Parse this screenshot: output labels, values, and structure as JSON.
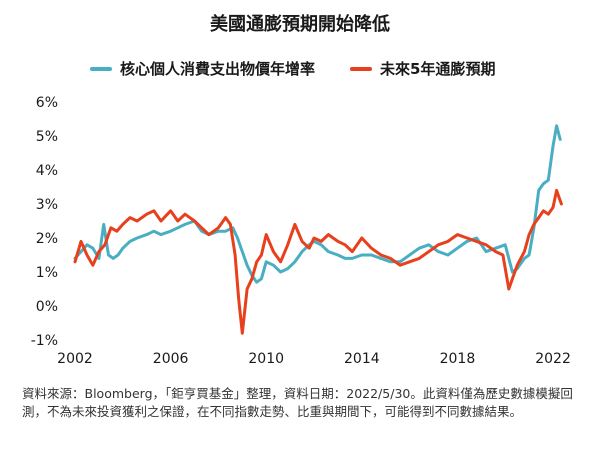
{
  "title": "美國通膨預期開始降低",
  "source_note": "資料來源：Bloomberg，「鉅亨買基金」整理，資料日期：2022/5/30。此資料僅為歷史數據模擬回測，不為未來投資獲利之保證，在不同指數走勢、比重與期間下，可能得到不同數據結果。",
  "chart_data": {
    "type": "line",
    "title": "美國通膨預期開始降低",
    "xlabel": "",
    "ylabel": "",
    "xlim": [
      2002,
      2022.5
    ],
    "ylim": [
      -1,
      6
    ],
    "x_ticks": [
      2002,
      2006,
      2010,
      2014,
      2018,
      2022
    ],
    "x_tick_labels": [
      "2002",
      "2006",
      "2010",
      "2014",
      "2018",
      "2022"
    ],
    "y_ticks": [
      -1,
      0,
      1,
      2,
      3,
      4,
      5,
      6
    ],
    "y_tick_labels": [
      "-1%",
      "0%",
      "1%",
      "2%",
      "3%",
      "4%",
      "5%",
      "6%"
    ],
    "grid": false,
    "legend_position": "top",
    "series": [
      {
        "name": "核心個人消費支出物價年增率",
        "color": "#4aaec3",
        "x": [
          2002.0,
          2002.25,
          2002.5,
          2002.75,
          2003.0,
          2003.2,
          2003.4,
          2003.6,
          2003.8,
          2004.0,
          2004.3,
          2004.6,
          2005.0,
          2005.3,
          2005.6,
          2006.0,
          2006.3,
          2006.6,
          2007.0,
          2007.3,
          2007.6,
          2008.0,
          2008.3,
          2008.6,
          2008.8,
          2009.0,
          2009.2,
          2009.4,
          2009.6,
          2009.8,
          2010.0,
          2010.3,
          2010.6,
          2010.9,
          2011.2,
          2011.5,
          2011.8,
          2012.0,
          2012.3,
          2012.6,
          2013.0,
          2013.3,
          2013.6,
          2014.0,
          2014.4,
          2014.8,
          2015.2,
          2015.6,
          2016.0,
          2016.4,
          2016.8,
          2017.2,
          2017.6,
          2018.0,
          2018.4,
          2018.8,
          2019.2,
          2019.6,
          2020.0,
          2020.3,
          2020.5,
          2020.8,
          2021.0,
          2021.2,
          2021.4,
          2021.6,
          2021.8,
          2022.0,
          2022.15,
          2022.3
        ],
        "values": [
          1.4,
          1.6,
          1.8,
          1.7,
          1.4,
          2.4,
          1.5,
          1.4,
          1.5,
          1.7,
          1.9,
          2.0,
          2.1,
          2.2,
          2.1,
          2.2,
          2.3,
          2.4,
          2.5,
          2.2,
          2.1,
          2.2,
          2.2,
          2.3,
          2.0,
          1.6,
          1.2,
          0.9,
          0.7,
          0.8,
          1.3,
          1.2,
          1.0,
          1.1,
          1.3,
          1.6,
          1.8,
          1.9,
          1.8,
          1.6,
          1.5,
          1.4,
          1.4,
          1.5,
          1.5,
          1.4,
          1.3,
          1.3,
          1.5,
          1.7,
          1.8,
          1.6,
          1.5,
          1.7,
          1.9,
          2.0,
          1.6,
          1.7,
          1.8,
          1.0,
          1.1,
          1.4,
          1.5,
          2.3,
          3.4,
          3.6,
          3.7,
          4.7,
          5.3,
          4.9
        ]
      },
      {
        "name": "未來5年通膨預期",
        "color": "#e8401c",
        "x": [
          2002.0,
          2002.25,
          2002.5,
          2002.75,
          2003.0,
          2003.25,
          2003.5,
          2003.75,
          2004.0,
          2004.3,
          2004.6,
          2005.0,
          2005.3,
          2005.6,
          2006.0,
          2006.3,
          2006.6,
          2007.0,
          2007.3,
          2007.6,
          2008.0,
          2008.3,
          2008.5,
          2008.7,
          2008.85,
          2009.0,
          2009.2,
          2009.4,
          2009.6,
          2009.8,
          2010.0,
          2010.3,
          2010.6,
          2010.9,
          2011.2,
          2011.5,
          2011.8,
          2012.0,
          2012.3,
          2012.6,
          2013.0,
          2013.3,
          2013.6,
          2014.0,
          2014.4,
          2014.8,
          2015.2,
          2015.6,
          2016.0,
          2016.4,
          2016.8,
          2017.2,
          2017.6,
          2018.0,
          2018.4,
          2018.8,
          2019.2,
          2019.6,
          2019.9,
          2020.15,
          2020.3,
          2020.5,
          2020.8,
          2021.0,
          2021.2,
          2021.4,
          2021.6,
          2021.8,
          2022.0,
          2022.15,
          2022.25,
          2022.35
        ],
        "values": [
          1.3,
          1.9,
          1.5,
          1.2,
          1.6,
          1.8,
          2.3,
          2.2,
          2.4,
          2.6,
          2.5,
          2.7,
          2.8,
          2.5,
          2.8,
          2.5,
          2.7,
          2.5,
          2.3,
          2.1,
          2.3,
          2.6,
          2.4,
          1.5,
          0.2,
          -0.8,
          0.5,
          0.8,
          1.3,
          1.5,
          2.1,
          1.6,
          1.3,
          1.8,
          2.4,
          1.9,
          1.7,
          2.0,
          1.9,
          2.1,
          1.9,
          1.8,
          1.6,
          2.0,
          1.7,
          1.5,
          1.4,
          1.2,
          1.3,
          1.4,
          1.6,
          1.8,
          1.9,
          2.1,
          2.0,
          1.9,
          1.8,
          1.6,
          1.5,
          0.5,
          0.8,
          1.2,
          1.6,
          2.1,
          2.4,
          2.6,
          2.8,
          2.7,
          2.9,
          3.4,
          3.2,
          3.0
        ]
      }
    ]
  }
}
